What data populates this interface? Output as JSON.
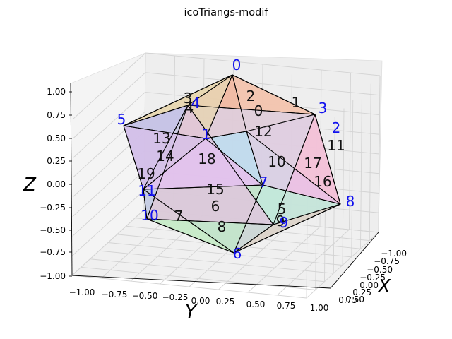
{
  "chart_data": {
    "type": "surface3d",
    "title": "icoTriangs-modif",
    "xlabel": "X",
    "ylabel": "Y",
    "zlabel": "Z",
    "xlim": [
      -1.0,
      1.0
    ],
    "ylim": [
      -1.0,
      1.0
    ],
    "zlim": [
      -1.0,
      1.0
    ],
    "grid": true,
    "x_ticks": [
      "−1.00",
      "−0.75",
      "−0.50",
      "−0.25",
      "0.00",
      "0.25",
      "0.50",
      "0.75"
    ],
    "y_ticks": [
      "−1.00",
      "−0.75",
      "−0.50",
      "−0.25",
      "0.00",
      "0.25",
      "0.50",
      "0.75",
      "1.00"
    ],
    "z_ticks": [
      "−1.00",
      "−0.75",
      "−0.50",
      "−0.25",
      "0.00",
      "0.25",
      "0.50",
      "0.75",
      "1.00"
    ],
    "vertices": [
      {
        "label": "0",
        "x": 0.0,
        "y": 0.0,
        "z": 1.0
      },
      {
        "label": "1",
        "x": -0.894,
        "y": 0.0,
        "z": 0.447
      },
      {
        "label": "2",
        "x": -0.276,
        "y": 0.851,
        "z": 0.447
      },
      {
        "label": "3",
        "x": 0.724,
        "y": 0.526,
        "z": 0.447
      },
      {
        "label": "4",
        "x": 0.724,
        "y": -0.526,
        "z": 0.447
      },
      {
        "label": "5",
        "x": -0.276,
        "y": -0.851,
        "z": 0.447
      },
      {
        "label": "6",
        "x": 0.0,
        "y": 0.0,
        "z": -1.0
      },
      {
        "label": "7",
        "x": -0.724,
        "y": 0.526,
        "z": -0.447
      },
      {
        "label": "8",
        "x": 0.276,
        "y": 0.851,
        "z": -0.447
      },
      {
        "label": "9",
        "x": 0.894,
        "y": 0.0,
        "z": -0.447
      },
      {
        "label": "10",
        "x": 0.276,
        "y": -0.851,
        "z": -0.447
      },
      {
        "label": "11",
        "x": -0.724,
        "y": -0.526,
        "z": -0.447
      }
    ],
    "faces": [
      {
        "label": "0",
        "v": [
          0,
          1,
          2
        ],
        "color": "#f0b8a2"
      },
      {
        "label": "1",
        "v": [
          0,
          2,
          3
        ],
        "color": "#f3c4b0"
      },
      {
        "label": "2",
        "v": [
          0,
          3,
          4
        ],
        "color": "#f2c3a8"
      },
      {
        "label": "3",
        "v": [
          0,
          4,
          5
        ],
        "color": "#eef0b5"
      },
      {
        "label": "4",
        "v": [
          0,
          5,
          1
        ],
        "color": "#e7d2b0"
      },
      {
        "label": "5",
        "v": [
          6,
          8,
          9
        ],
        "color": "#e2cfc8"
      },
      {
        "label": "6",
        "v": [
          6,
          9,
          10
        ],
        "color": "#cfd3d6"
      },
      {
        "label": "7",
        "v": [
          6,
          10,
          11
        ],
        "color": "#c6efc6"
      },
      {
        "label": "8",
        "v": [
          6,
          11,
          7
        ],
        "color": "#bfe6c8"
      },
      {
        "label": "9",
        "v": [
          6,
          7,
          8
        ],
        "color": "#bdebd8"
      },
      {
        "label": "10",
        "v": [
          1,
          2,
          7
        ],
        "color": "#bcdcef"
      },
      {
        "label": "11",
        "v": [
          2,
          3,
          8
        ],
        "color": "#f3c2d6"
      },
      {
        "label": "12",
        "v": [
          2,
          8,
          7
        ],
        "color": "#c9d4ee"
      },
      {
        "label": "13",
        "v": [
          4,
          5,
          11
        ],
        "color": "#c0c0ef"
      },
      {
        "label": "14",
        "v": [
          5,
          1,
          11
        ],
        "color": "#d7bfe6"
      },
      {
        "label": "15",
        "v": [
          1,
          11,
          7
        ],
        "color": "#e2c1ef"
      },
      {
        "label": "16",
        "v": [
          3,
          9,
          8
        ],
        "color": "#f0bde2"
      },
      {
        "label": "17",
        "v": [
          3,
          4,
          9
        ],
        "color": "#dccfe2"
      },
      {
        "label": "18",
        "v": [
          4,
          10,
          9
        ],
        "color": "#dfc3dc"
      },
      {
        "label": "19",
        "v": [
          4,
          11,
          10
        ],
        "color": "#c4c6e8"
      }
    ]
  }
}
